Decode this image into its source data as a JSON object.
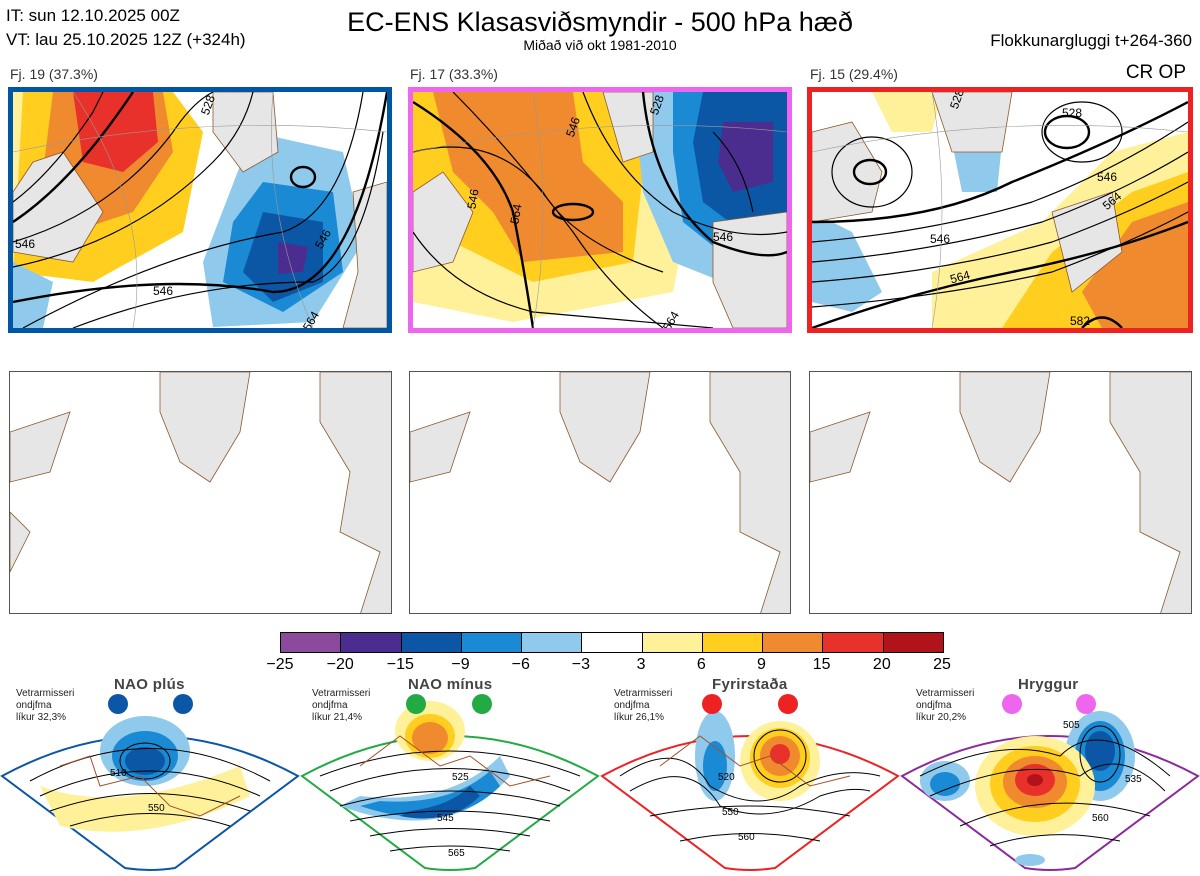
{
  "header": {
    "init_time": "IT: sun 12.10.2025 00Z",
    "valid_time": "VT: lau 25.10.2025 12Z  (+324h)",
    "title": "EC-ENS Klasasviðsmyndir - 500 hPa hæð",
    "subtitle": "Miðað við okt 1981-2010",
    "window": "Flokkunargluggi t+264-360"
  },
  "clusters": [
    {
      "label": "Fj. 19 (37.3%)",
      "border_color": "#0055a4",
      "contours": [
        "546",
        "546",
        "546",
        "528",
        "564"
      ]
    },
    {
      "label": "Fj. 17 (33.3%)",
      "border_color": "#ee66ee",
      "contours": [
        "546",
        "564",
        "546",
        "546",
        "528",
        "564"
      ]
    },
    {
      "label": "Fj. 15 (29.4%)",
      "border_color": "#ee2222",
      "contours": [
        "528",
        "528",
        "546",
        "546",
        "564",
        "564",
        "582"
      ]
    }
  ],
  "cr_op": "CR OP",
  "colorbar": {
    "ticks": [
      "−25",
      "−20",
      "−15",
      "−9",
      "−6",
      "−3",
      "3",
      "6",
      "9",
      "15",
      "20",
      "25"
    ],
    "colors": [
      "#8b4a9c",
      "#4b2d8f",
      "#0c57a5",
      "#1a8ad4",
      "#8fc9ec",
      "#ffffff",
      "#fff19a",
      "#ffce1f",
      "#f08a2e",
      "#e8312a",
      "#b01319"
    ]
  },
  "regimes": [
    {
      "title": "NAO plús",
      "color": "#0c57a5",
      "text1": "Vetrarmisseri",
      "text2": "ondjfma",
      "text3": "líkur 32,3%",
      "contours": [
        "510",
        "550"
      ]
    },
    {
      "title": "NAO mínus",
      "color": "#22aa44",
      "text1": "Vetrarmisseri",
      "text2": "ondjfma",
      "text3": "líkur 21,4%",
      "contours": [
        "525",
        "545",
        "565"
      ]
    },
    {
      "title": "Fyrirstaða",
      "color": "#ee2222",
      "text1": "Vetrarmisseri",
      "text2": "ondjfma",
      "text3": "líkur 26,1%",
      "contours": [
        "520",
        "550",
        "560"
      ]
    },
    {
      "title": "Hryggur",
      "color": "#ee66ee",
      "text1": "Vetrarmisseri",
      "text2": "ondjfma",
      "text3": "líkur 20,2%",
      "contours": [
        "505",
        "535",
        "560"
      ]
    }
  ]
}
